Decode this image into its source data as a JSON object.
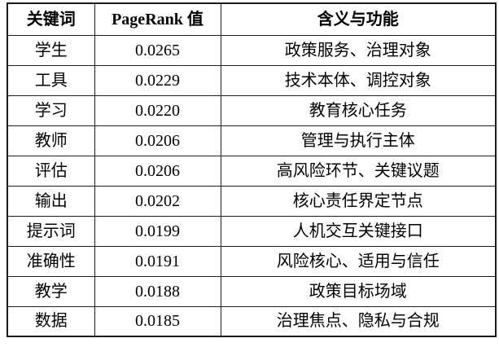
{
  "table": {
    "name": "pagerank-keywords-table",
    "headers": [
      "关键词",
      "PageRank 值",
      "含义与功能"
    ],
    "rows": [
      [
        "学生",
        "0.0265",
        "政策服务、治理对象"
      ],
      [
        "工具",
        "0.0229",
        "技术本体、调控对象"
      ],
      [
        "学习",
        "0.0220",
        "教育核心任务"
      ],
      [
        "教师",
        "0.0206",
        "管理与执行主体"
      ],
      [
        "评估",
        "0.0206",
        "高风险环节、关键议题"
      ],
      [
        "输出",
        "0.0202",
        "核心责任界定节点"
      ],
      [
        "提示词",
        "0.0199",
        "人机交互关键接口"
      ],
      [
        "准确性",
        "0.0191",
        "风险核心、适用与信任"
      ],
      [
        "教学",
        "0.0188",
        "政策目标场域"
      ],
      [
        "数据",
        "0.0185",
        "治理焦点、隐私与合规"
      ]
    ],
    "colors": {
      "border": "#1a1a1a",
      "text": "#000000",
      "background": "#ffffff"
    }
  }
}
